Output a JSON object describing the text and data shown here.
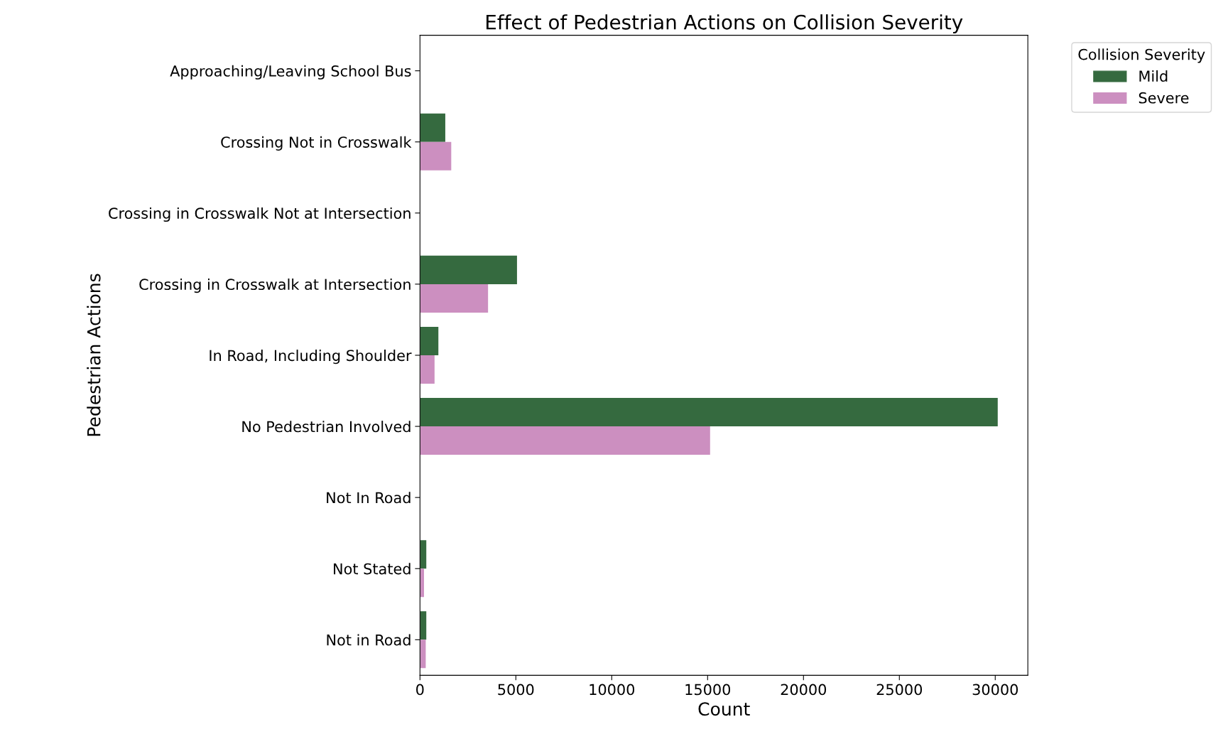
{
  "chart_data": {
    "type": "bar",
    "orientation": "horizontal",
    "title": "Effect of Pedestrian Actions on Collision Severity",
    "xlabel": "Count",
    "ylabel": "Pedestrian Actions",
    "legend_title": "Collision Severity",
    "legend": "top right",
    "categories": [
      "Approaching/Leaving School Bus",
      "Crossing Not in Crosswalk",
      "Crossing in Crosswalk Not at Intersection",
      "Crossing in Crosswalk at Intersection",
      "In Road, Including Shoulder",
      "No Pedestrian Involved",
      "Not In Road",
      "Not Stated",
      "Not in Road"
    ],
    "series": [
      {
        "name": "Mild",
        "color": "#356a3f",
        "values": [
          null,
          1320,
          null,
          5060,
          960,
          30130,
          null,
          330,
          330
        ]
      },
      {
        "name": "Severe",
        "color": "#cc8fc0",
        "values": [
          null,
          1630,
          null,
          3550,
          760,
          15130,
          null,
          210,
          300
        ]
      }
    ],
    "xlim": [
      0,
      31700
    ],
    "xticks": [
      0,
      5000,
      10000,
      15000,
      20000,
      25000,
      30000
    ],
    "grid": false
  }
}
